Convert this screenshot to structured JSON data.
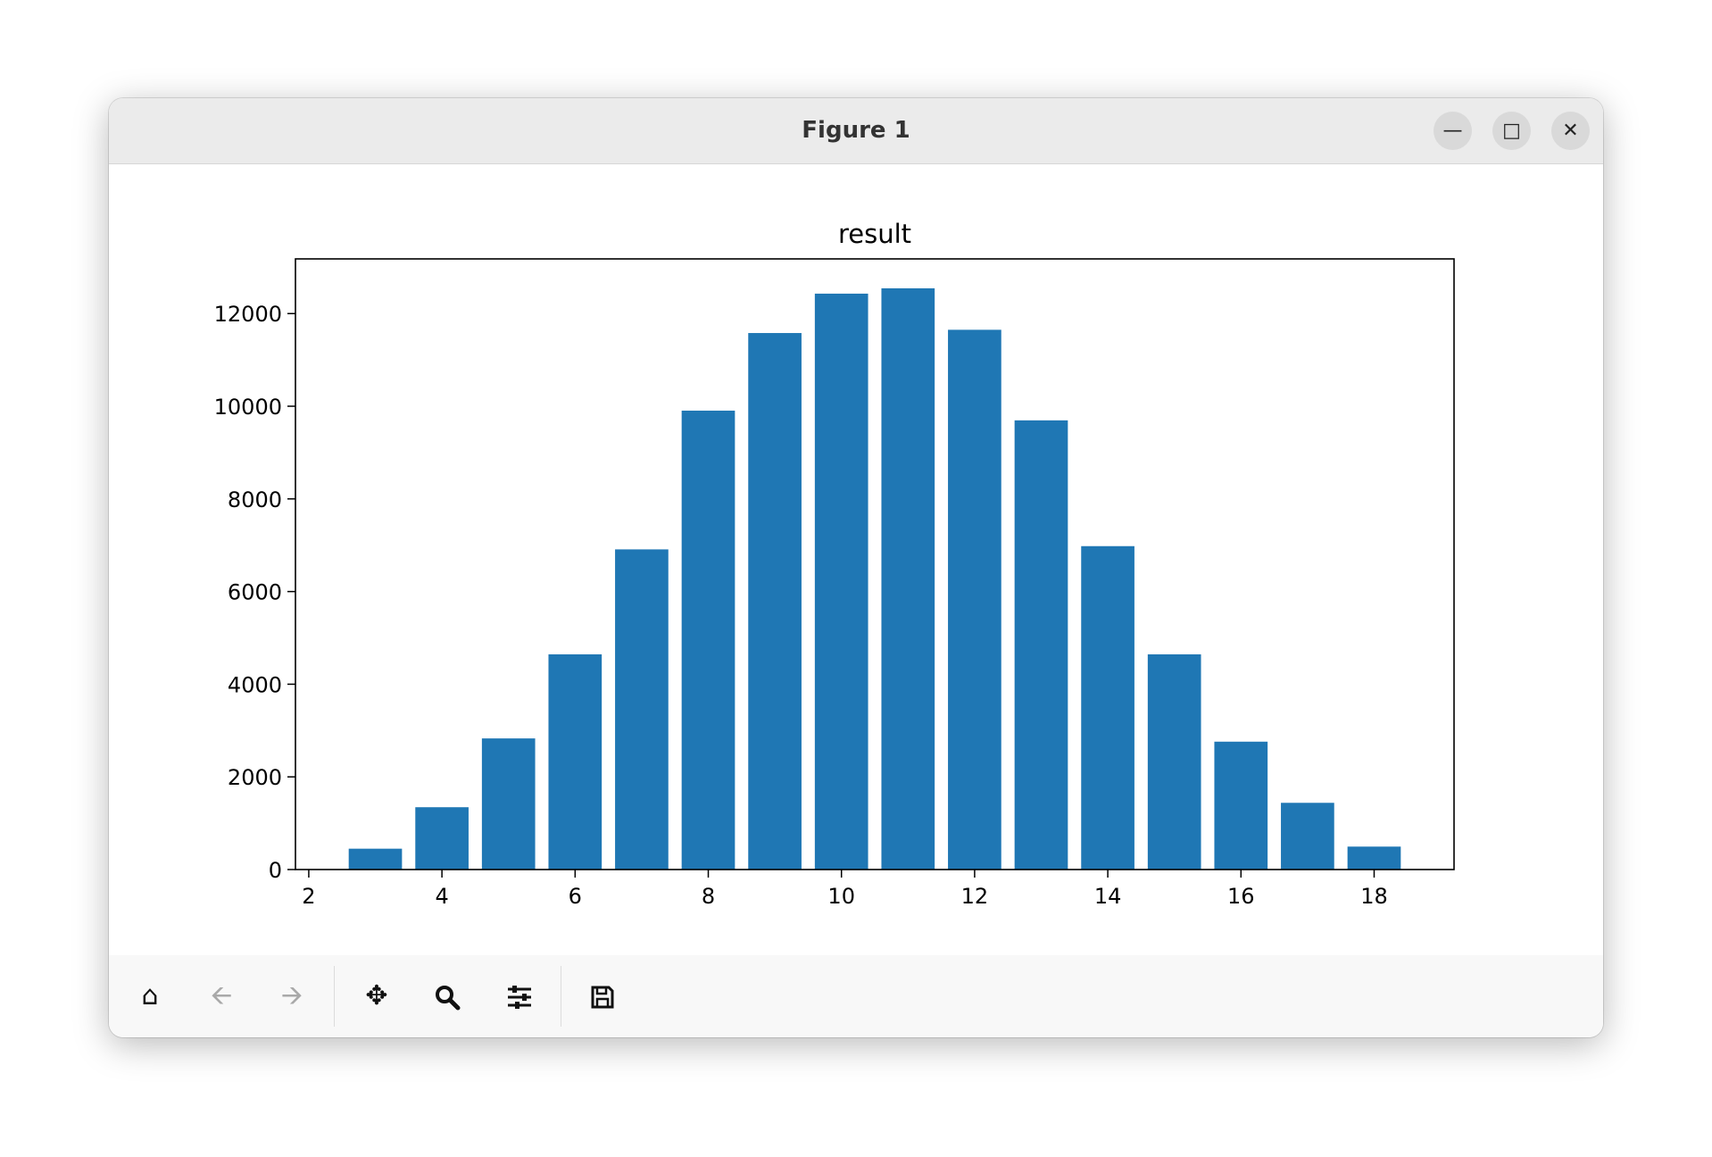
{
  "window": {
    "title": "Figure 1",
    "controls": [
      "minimize",
      "maximize",
      "close"
    ]
  },
  "toolbar": {
    "icons": [
      "home-icon",
      "back-icon",
      "forward-icon",
      "pan-icon",
      "zoom-icon",
      "configure-subplots-icon",
      "save-icon"
    ]
  },
  "chart_data": {
    "type": "bar",
    "title": "result",
    "xlabel": "",
    "ylabel": "",
    "x": [
      3,
      4,
      5,
      6,
      7,
      8,
      9,
      10,
      11,
      12,
      13,
      14,
      15,
      16,
      17,
      18
    ],
    "values": [
      450,
      1345,
      2830,
      4645,
      6910,
      9905,
      11580,
      12430,
      12545,
      11650,
      9695,
      6980,
      4645,
      2760,
      1440,
      495
    ],
    "xlim": [
      1.8,
      19.2
    ],
    "ylim": [
      0,
      13180
    ],
    "xticks": [
      "2",
      "4",
      "6",
      "8",
      "10",
      "12",
      "14",
      "16",
      "18"
    ],
    "yticks": [
      "0",
      "2000",
      "4000",
      "6000",
      "8000",
      "10000",
      "12000"
    ],
    "bar_color": "#1f77b4",
    "grid": false,
    "legend": "none"
  }
}
